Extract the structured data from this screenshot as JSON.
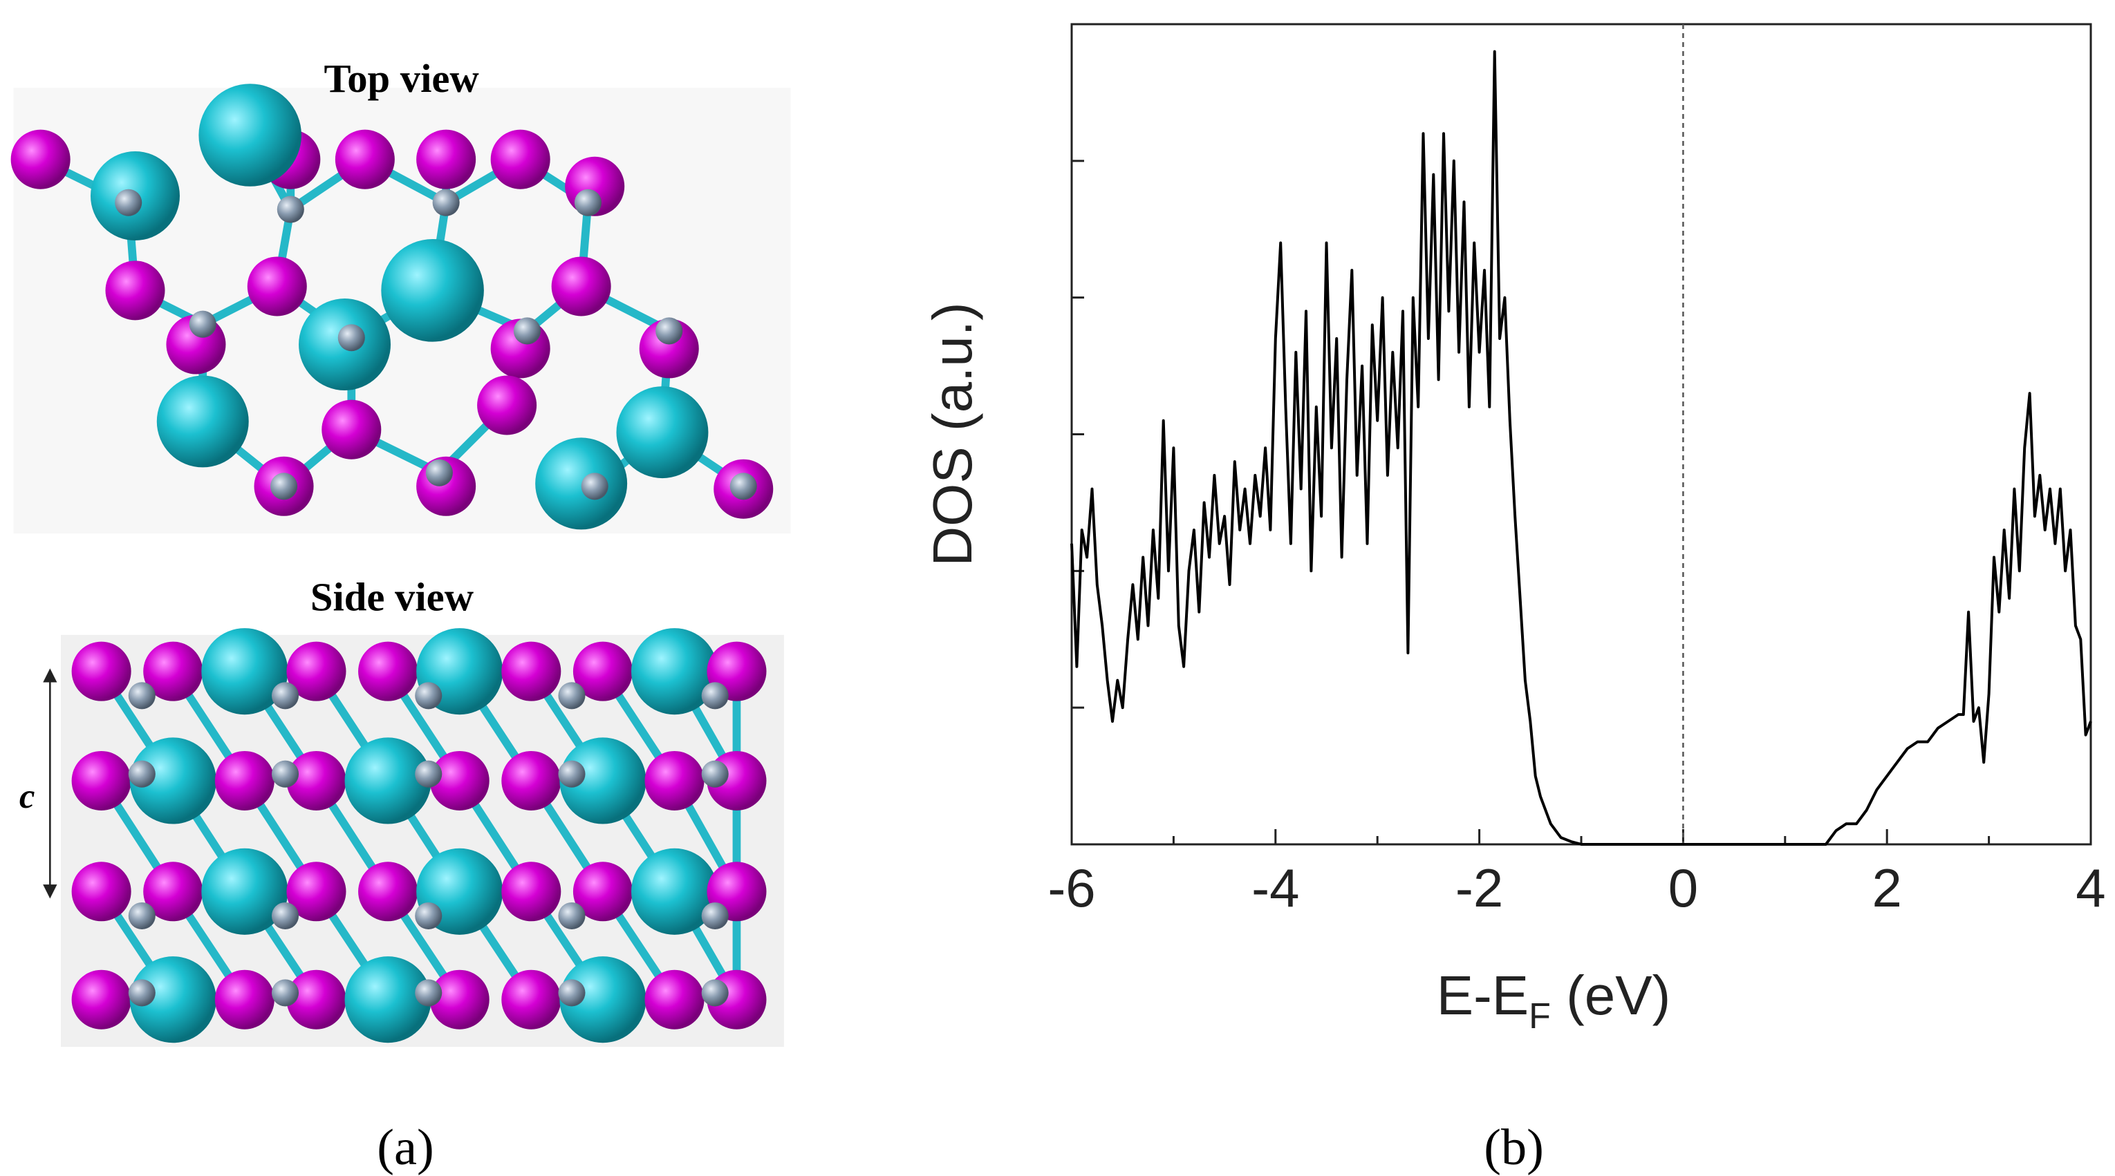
{
  "panel_a": {
    "top_view_title": "Top view",
    "side_view_title": "Side view",
    "lattice_label": "c",
    "caption": "(a)"
  },
  "chart_data": {
    "type": "line",
    "caption": "(b)",
    "y_label": "DOS (a.u.)",
    "x_label": {
      "text": "E-E",
      "subscript": "F",
      "suffix": " (eV)"
    },
    "color": "#000000",
    "xlim": [
      -6,
      4
    ],
    "xticks": [
      -6,
      -4,
      -2,
      0,
      2,
      4
    ],
    "xticks_minor": [
      -5,
      -3,
      -1,
      1,
      3
    ],
    "ylim": [
      0,
      6
    ],
    "yticks": [
      0,
      1,
      2,
      3,
      4,
      5,
      6
    ],
    "ytick_labels": false,
    "vline_x": 0,
    "vline_style": "dashed",
    "x": [
      -6,
      -5.95,
      -5.9,
      -5.85,
      -5.8,
      -5.75,
      -5.7,
      -5.65,
      -5.6,
      -5.55,
      -5.5,
      -5.45,
      -5.4,
      -5.35,
      -5.3,
      -5.25,
      -5.2,
      -5.15,
      -5.1,
      -5.05,
      -5,
      -4.95,
      -4.9,
      -4.85,
      -4.8,
      -4.75,
      -4.7,
      -4.65,
      -4.6,
      -4.55,
      -4.5,
      -4.45,
      -4.4,
      -4.35,
      -4.3,
      -4.25,
      -4.2,
      -4.15,
      -4.1,
      -4.05,
      -4,
      -3.95,
      -3.9,
      -3.85,
      -3.8,
      -3.75,
      -3.7,
      -3.65,
      -3.6,
      -3.55,
      -3.5,
      -3.45,
      -3.4,
      -3.35,
      -3.3,
      -3.25,
      -3.2,
      -3.15,
      -3.1,
      -3.05,
      -3,
      -2.95,
      -2.9,
      -2.85,
      -2.8,
      -2.75,
      -2.7,
      -2.65,
      -2.6,
      -2.55,
      -2.5,
      -2.45,
      -2.4,
      -2.35,
      -2.3,
      -2.25,
      -2.2,
      -2.15,
      -2.1,
      -2.05,
      -2,
      -1.95,
      -1.9,
      -1.85,
      -1.8,
      -1.75,
      -1.7,
      -1.65,
      -1.6,
      -1.55,
      -1.5,
      -1.45,
      -1.4,
      -1.3,
      -1.2,
      -1.1,
      -1,
      -0.5,
      0,
      0.5,
      1,
      1.4,
      1.5,
      1.6,
      1.7,
      1.8,
      1.9,
      2,
      2.1,
      2.2,
      2.3,
      2.4,
      2.5,
      2.6,
      2.7,
      2.75,
      2.8,
      2.85,
      2.9,
      2.95,
      3,
      3.05,
      3.1,
      3.15,
      3.2,
      3.25,
      3.3,
      3.35,
      3.4,
      3.45,
      3.5,
      3.55,
      3.6,
      3.65,
      3.7,
      3.75,
      3.8,
      3.85,
      3.9,
      3.95,
      4
    ],
    "values": [
      2.2,
      1.3,
      2.3,
      2.1,
      2.6,
      1.9,
      1.6,
      1.2,
      0.9,
      1.2,
      1.0,
      1.5,
      1.9,
      1.5,
      2.1,
      1.6,
      2.3,
      1.8,
      3.1,
      2.0,
      2.9,
      1.6,
      1.3,
      2.0,
      2.3,
      1.7,
      2.5,
      2.1,
      2.7,
      2.2,
      2.4,
      1.9,
      2.8,
      2.3,
      2.6,
      2.2,
      2.7,
      2.4,
      2.9,
      2.3,
      3.7,
      4.4,
      3.2,
      2.2,
      3.6,
      2.6,
      3.9,
      2.0,
      3.2,
      2.4,
      4.4,
      2.9,
      3.7,
      2.1,
      3.4,
      4.2,
      2.7,
      3.5,
      2.2,
      3.8,
      3.1,
      4.0,
      2.7,
      3.6,
      2.9,
      3.9,
      1.4,
      4.0,
      3.2,
      5.2,
      3.7,
      4.9,
      3.4,
      5.2,
      3.9,
      5.0,
      3.6,
      4.7,
      3.2,
      4.4,
      3.6,
      4.2,
      3.2,
      5.8,
      3.7,
      4.0,
      3.1,
      2.4,
      1.8,
      1.2,
      0.9,
      0.5,
      0.35,
      0.15,
      0.05,
      0.02,
      0,
      0,
      0,
      0,
      0,
      0,
      0.1,
      0.15,
      0.15,
      0.25,
      0.4,
      0.5,
      0.6,
      0.7,
      0.75,
      0.75,
      0.85,
      0.9,
      0.95,
      0.95,
      1.7,
      0.9,
      1.0,
      0.6,
      1.1,
      2.1,
      1.7,
      2.3,
      1.8,
      2.6,
      2.0,
      2.9,
      3.3,
      2.4,
      2.7,
      2.3,
      2.6,
      2.2,
      2.6,
      2.0,
      2.3,
      1.6,
      1.5,
      0.8,
      0.9
    ]
  }
}
